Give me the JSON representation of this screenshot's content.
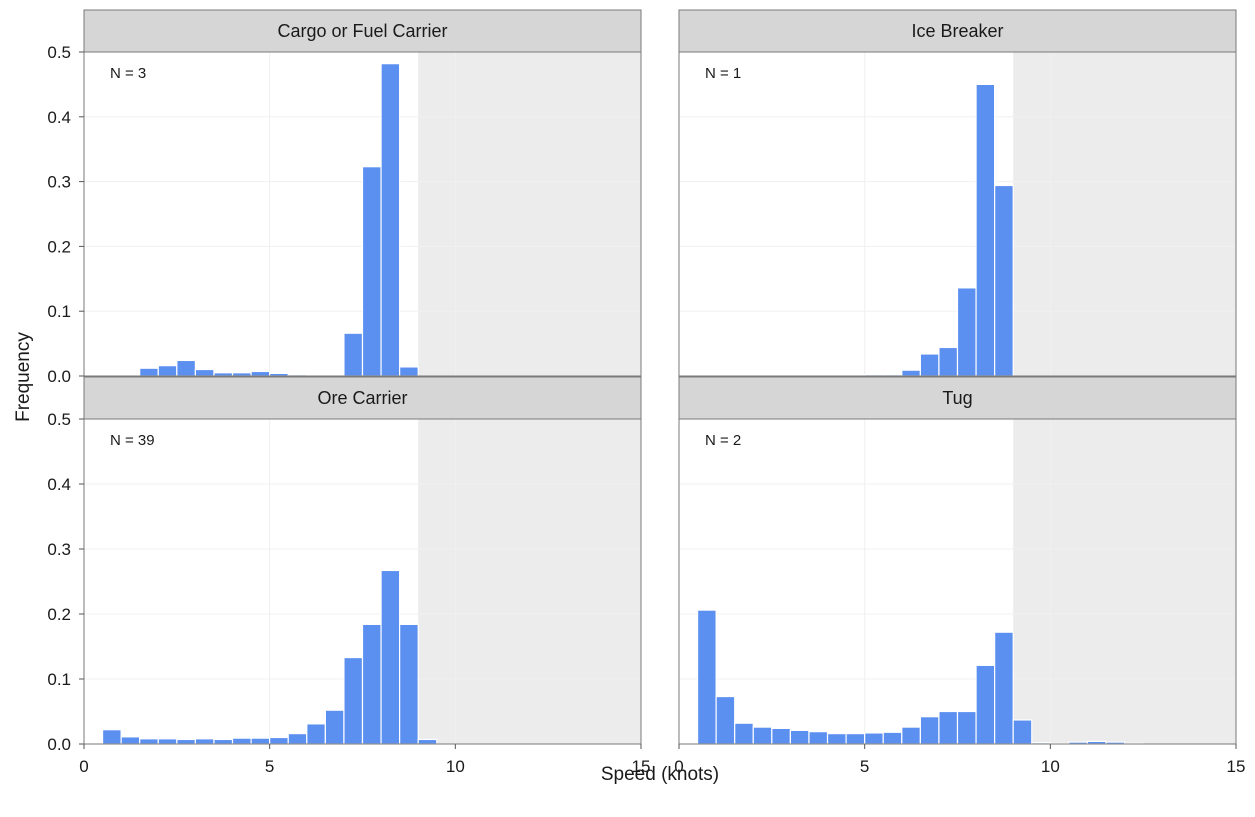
{
  "colors": {
    "bar": "#5b8ff0",
    "bar_stroke": "#ffffff",
    "strip": "#d6d6d6",
    "shade": "#ececec",
    "grid": "#f0f0f0"
  },
  "chart_data": {
    "type": "bar",
    "subtype": "histogram-facets",
    "xlabel": "Speed (knots)",
    "ylabel": "Frequency",
    "xlim": [
      0,
      15
    ],
    "ylim": [
      0,
      0.5
    ],
    "x_ticks": [
      "0",
      "5",
      "10",
      "15"
    ],
    "y_ticks": [
      "0.0",
      "0.1",
      "0.2",
      "0.3",
      "0.4",
      "0.5"
    ],
    "bin_width": 0.5,
    "shaded_region": [
      9,
      15
    ],
    "grid": true,
    "panels": [
      {
        "title": "Cargo or Fuel Carrier",
        "n_label": "N = 3",
        "bin_starts": [
          0,
          0.5,
          1,
          1.5,
          2,
          2.5,
          3,
          3.5,
          4,
          4.5,
          5,
          5.5,
          6,
          6.5,
          7,
          7.5,
          8,
          8.5,
          9
        ],
        "values": [
          0,
          0,
          0,
          0.012,
          0.016,
          0.024,
          0.01,
          0.005,
          0.005,
          0.007,
          0.004,
          0.002,
          0.001,
          0.001,
          0.066,
          0.323,
          0.482,
          0.014,
          0
        ]
      },
      {
        "title": "Ice Breaker",
        "n_label": "N = 1",
        "bin_starts": [
          0,
          0.5,
          1,
          1.5,
          2,
          2.5,
          3,
          3.5,
          4,
          4.5,
          5,
          5.5,
          6,
          6.5,
          7,
          7.5,
          8,
          8.5,
          9
        ],
        "values": [
          0,
          0.001,
          0,
          0,
          0,
          0,
          0,
          0,
          0,
          0,
          0.002,
          0.002,
          0.009,
          0.034,
          0.044,
          0.136,
          0.45,
          0.294,
          0
        ]
      },
      {
        "title": "Ore Carrier",
        "n_label": "N = 39",
        "bin_starts": [
          0,
          0.5,
          1,
          1.5,
          2,
          2.5,
          3,
          3.5,
          4,
          4.5,
          5,
          5.5,
          6,
          6.5,
          7,
          7.5,
          8,
          8.5,
          9
        ],
        "values": [
          0,
          0.022,
          0.011,
          0.008,
          0.008,
          0.007,
          0.008,
          0.007,
          0.009,
          0.009,
          0.01,
          0.016,
          0.031,
          0.052,
          0.133,
          0.184,
          0.267,
          0.184,
          0.007
        ]
      },
      {
        "title": "Tug",
        "n_label": "N = 2",
        "bin_starts": [
          0,
          0.5,
          1,
          1.5,
          2,
          2.5,
          3,
          3.5,
          4,
          4.5,
          5,
          5.5,
          6,
          6.5,
          7,
          7.5,
          8,
          8.5,
          9,
          9.5,
          10,
          10.5,
          11,
          11.5,
          12
        ],
        "values": [
          0,
          0.206,
          0.073,
          0.032,
          0.026,
          0.024,
          0.021,
          0.019,
          0.016,
          0.016,
          0.017,
          0.018,
          0.026,
          0.042,
          0.05,
          0.05,
          0.121,
          0.172,
          0.037,
          0.002,
          0.001,
          0.003,
          0.004,
          0.003,
          0.001
        ]
      }
    ]
  }
}
